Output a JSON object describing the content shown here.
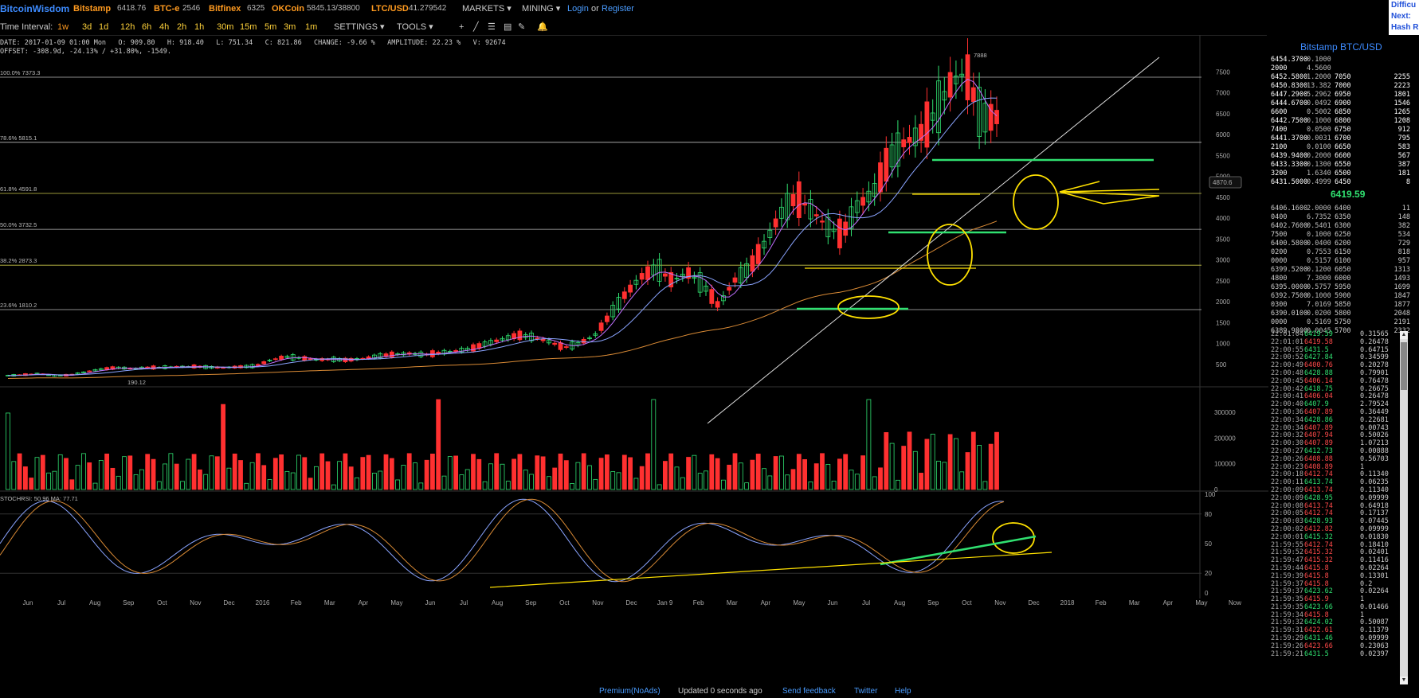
{
  "topbar": {
    "brand": "BitcoinWisdom",
    "exchanges": [
      {
        "name": "Bitstamp",
        "value": "6418.76"
      },
      {
        "name": "BTC-e",
        "value": "2546"
      },
      {
        "name": "Bitfinex",
        "value": "6325"
      },
      {
        "name": "OKCoin",
        "value": "5845.13/38800"
      },
      {
        "name": "LTC/USD",
        "value": "41.279542"
      }
    ],
    "markets_label": "MARKETS ▾",
    "mining_label": "MINING ▾",
    "login_label": "Login",
    "or_label": "or",
    "register_label": "Register"
  },
  "difficulty_widget": {
    "line1": "Difficu",
    "line2": "Next:",
    "line3": "Hash R"
  },
  "toolbar": {
    "interval_label": "Time Interval:",
    "intervals": [
      "1w",
      "3d",
      "1d",
      "12h",
      "6h",
      "4h",
      "2h",
      "1h",
      "30m",
      "15m",
      "5m",
      "3m",
      "1m"
    ],
    "selected_interval": "1w",
    "settings_label": "SETTINGS ▾",
    "tools_label": "TOOLS ▾"
  },
  "ohlc": {
    "line1": "DATE: 2017-01-09 01:00 Mon   O: 909.80   H: 918.40   L: 751.34   C: 821.86   CHANGE: -9.66 %   AMPLITUDE: 22.23 %   V: 92674",
    "line2": "OFFSET: -308.9d, -24.13% / +31.80%, -1549."
  },
  "chart_annotations": {
    "high_label": "7888",
    "low_label": "190.12",
    "crosshair_label": "4870.6",
    "fib_levels": [
      {
        "label": "100.0% 7373.3",
        "price": 7373.3
      },
      {
        "label": "78.6% 5815.1",
        "price": 5815.1
      },
      {
        "label": "61.8% 4591.8",
        "price": 4591.8
      },
      {
        "label": "50.0% 3732.5",
        "price": 3732.5
      },
      {
        "label": "38.2% 2873.3",
        "price": 2873.3
      },
      {
        "label": "23.6% 1810.2",
        "price": 1810.2
      }
    ]
  },
  "chart_data": [
    {
      "type": "line",
      "title": "",
      "y_axis_ticks": [
        500,
        1000,
        1500,
        2000,
        2500,
        3000,
        3500,
        4000,
        4500,
        5000,
        5500,
        6000,
        6500,
        7000,
        7500
      ],
      "ylim": [
        0,
        7888
      ],
      "x_ticks": [
        "Jun",
        "Jul",
        "Aug",
        "Sep",
        "Oct",
        "Nov",
        "Dec",
        "2016",
        "Feb",
        "Mar",
        "Apr",
        "May",
        "Jun",
        "Jul",
        "Aug",
        "Sep",
        "Oct",
        "Nov",
        "Dec",
        "Jan 9",
        "Feb",
        "Mar",
        "Apr",
        "May",
        "Jun",
        "Jul",
        "Aug",
        "Sep",
        "Oct",
        "Nov",
        "Dec",
        "2018",
        "Feb",
        "Mar",
        "Apr",
        "May",
        "Now"
      ],
      "series": [
        {
          "values": [
            230,
            250,
            280,
            230,
            240,
            320,
            380,
            420,
            400,
            420,
            430,
            440,
            450,
            430,
            420,
            440,
            460,
            600,
            680,
            650,
            610,
            620,
            600,
            640,
            700,
            740,
            760,
            730,
            780,
            820,
            880,
            1000,
            1100,
            1200,
            1150,
            1050,
            900,
            1000,
            1200,
            1700,
            2200,
            2600,
            2800,
            2500,
            2700,
            2400,
            1900,
            2500,
            2800,
            3400,
            4100,
            4500,
            4200,
            3800,
            3600,
            4300,
            4600,
            5400,
            5800,
            6000,
            6500,
            7200,
            7500,
            6400,
            6420
          ]
        }
      ]
    },
    {
      "type": "bar",
      "title": "",
      "y_axis_ticks": [
        0,
        100000,
        200000,
        300000
      ],
      "ylim": [
        0,
        380000
      ]
    },
    {
      "type": "line",
      "title": "",
      "legend": [
        "STOCHRSI: 50.96",
        "MA: 77.71"
      ],
      "y_axis_ticks": [
        0,
        20,
        50,
        80,
        100
      ],
      "ylim": [
        0,
        100
      ]
    }
  ],
  "orderbook": {
    "title": "Bitstamp BTC/USD",
    "current_price": "6419.59",
    "asks": [
      [
        "6454.3700",
        "0.1000",
        "",
        ""
      ],
      [
        "2000",
        "4.5600",
        "",
        ""
      ],
      [
        "6452.5800",
        "1.2000",
        "7050",
        "2255"
      ],
      [
        "6450.8300",
        "13.382",
        "7000",
        "2223"
      ],
      [
        "6447.2900",
        "5.2962",
        "6950",
        "1801"
      ],
      [
        "6444.6700",
        "0.0492",
        "6900",
        "1546"
      ],
      [
        "6600",
        "0.5002",
        "6850",
        "1265"
      ],
      [
        "6442.7500",
        "0.1000",
        "6800",
        "1208"
      ],
      [
        "7400",
        "0.0500",
        "6750",
        "912"
      ],
      [
        "6441.3700",
        "0.0031",
        "6700",
        "795"
      ],
      [
        "2100",
        "0.0100",
        "6650",
        "583"
      ],
      [
        "6439.9400",
        "0.2000",
        "6600",
        "567"
      ],
      [
        "6433.3300",
        "0.1300",
        "6550",
        "387"
      ],
      [
        "3200",
        "1.6340",
        "6500",
        "181"
      ],
      [
        "6431.5000",
        "0.4999",
        "6450",
        "8"
      ]
    ],
    "bids": [
      [
        "6406.1600",
        "2.0000",
        "6400",
        "11"
      ],
      [
        "0400",
        "6.7352",
        "6350",
        "148"
      ],
      [
        "6402.7600",
        "0.5401",
        "6300",
        "382"
      ],
      [
        "7500",
        "0.1000",
        "6250",
        "534"
      ],
      [
        "6400.5800",
        "0.0400",
        "6200",
        "729"
      ],
      [
        "0200",
        "0.7553",
        "6150",
        "818"
      ],
      [
        "0000",
        "0.5157",
        "6100",
        "957"
      ],
      [
        "6399.5200",
        "0.1200",
        "6050",
        "1313"
      ],
      [
        "4800",
        "7.3000",
        "6000",
        "1493"
      ],
      [
        "6395.0000",
        "0.5757",
        "5950",
        "1699"
      ],
      [
        "6392.7500",
        "0.1000",
        "5900",
        "1847"
      ],
      [
        "0300",
        "7.0169",
        "5850",
        "1877"
      ],
      [
        "6390.0100",
        "0.0200",
        "5800",
        "2048"
      ],
      [
        "0000",
        "0.5169",
        "5750",
        "2191"
      ],
      [
        "6389.9800",
        "0.0045",
        "5700",
        "2332"
      ]
    ]
  },
  "trades": [
    [
      "22:01:04",
      "6419.59",
      "0.31565",
      "up"
    ],
    [
      "22:01:01",
      "6419.58",
      "0.26478",
      "dn"
    ],
    [
      "22:00:55",
      "6431.5",
      "0.64715",
      "up"
    ],
    [
      "22:00:52",
      "6427.84",
      "0.34599",
      "up"
    ],
    [
      "22:00:49",
      "6400.76",
      "0.20278",
      "dn"
    ],
    [
      "22:00:48",
      "6428.88",
      "0.79901",
      "up"
    ],
    [
      "22:00:45",
      "6406.14",
      "0.76478",
      "dn"
    ],
    [
      "22:00:42",
      "6418.75",
      "0.26675",
      "up"
    ],
    [
      "22:00:41",
      "6406.04",
      "0.26478",
      "dn"
    ],
    [
      "22:00:40",
      "6407.9",
      "2.79524",
      "up"
    ],
    [
      "22:00:36",
      "6407.89",
      "0.36449",
      "dn"
    ],
    [
      "22:00:34",
      "6428.86",
      "0.22681",
      "up"
    ],
    [
      "22:00:34",
      "6407.89",
      "0.00743",
      "dn"
    ],
    [
      "22:00:32",
      "6407.94",
      "0.50026",
      "dn"
    ],
    [
      "22:00:30",
      "6407.89",
      "1.07213",
      "dn"
    ],
    [
      "22:00:27",
      "6412.73",
      "0.00888",
      "up"
    ],
    [
      "22:00:26",
      "6408.88",
      "0.56703",
      "dn"
    ],
    [
      "22:00:23",
      "6408.89",
      "1",
      "dn"
    ],
    [
      "22:00:18",
      "6412.74",
      "0.11340",
      "dn"
    ],
    [
      "22:00:11",
      "6413.74",
      "0.06235",
      "up"
    ],
    [
      "22:00:09",
      "6413.74",
      "0.11340",
      "dn"
    ],
    [
      "22:00:09",
      "6428.95",
      "0.09999",
      "up"
    ],
    [
      "22:00:08",
      "6413.74",
      "0.64918",
      "dn"
    ],
    [
      "22:00:05",
      "6412.74",
      "0.17137",
      "dn"
    ],
    [
      "22:00:03",
      "6428.93",
      "0.07445",
      "up"
    ],
    [
      "22:00:02",
      "6412.82",
      "0.09999",
      "dn"
    ],
    [
      "22:00:01",
      "6415.32",
      "0.01830",
      "up"
    ],
    [
      "21:59:55",
      "6412.74",
      "0.18410",
      "dn"
    ],
    [
      "21:59:52",
      "6415.32",
      "0.02401",
      "dn"
    ],
    [
      "21:59:47",
      "6415.32",
      "0.11416",
      "dn"
    ],
    [
      "21:59:44",
      "6415.8",
      "0.02264",
      "dn"
    ],
    [
      "21:59:39",
      "6415.8",
      "0.13301",
      "dn"
    ],
    [
      "21:59:37",
      "6415.8",
      "0.2",
      "dn"
    ],
    [
      "21:59:37",
      "6423.62",
      "0.02264",
      "up"
    ],
    [
      "21:59:35",
      "6415.9",
      "1",
      "dn"
    ],
    [
      "21:59:35",
      "6423.66",
      "0.01466",
      "up"
    ],
    [
      "21:59:34",
      "6415.8",
      "1",
      "dn"
    ],
    [
      "21:59:32",
      "6424.02",
      "0.50087",
      "up"
    ],
    [
      "21:59:31",
      "6422.61",
      "0.11379",
      "dn"
    ],
    [
      "21:59:29",
      "6431.46",
      "0.09999",
      "up"
    ],
    [
      "21:59:26",
      "6423.66",
      "0.23063",
      "dn"
    ],
    [
      "21:59:21",
      "6431.5",
      "0.02397",
      "up"
    ]
  ],
  "statusbar": {
    "premium": "Premium(NoAds)",
    "updated": "Updated 0 seconds ago",
    "feedback": "Send feedback",
    "twitter": "Twitter",
    "help": "Help"
  },
  "colors": {
    "up": "#30e070",
    "down": "#ff3030",
    "accent_yellow": "#ffe100",
    "ma_purple": "#c070ff",
    "ma_blue": "#8aa4ff",
    "ma_orange": "#d98a35",
    "brand": "#3d8bff"
  }
}
